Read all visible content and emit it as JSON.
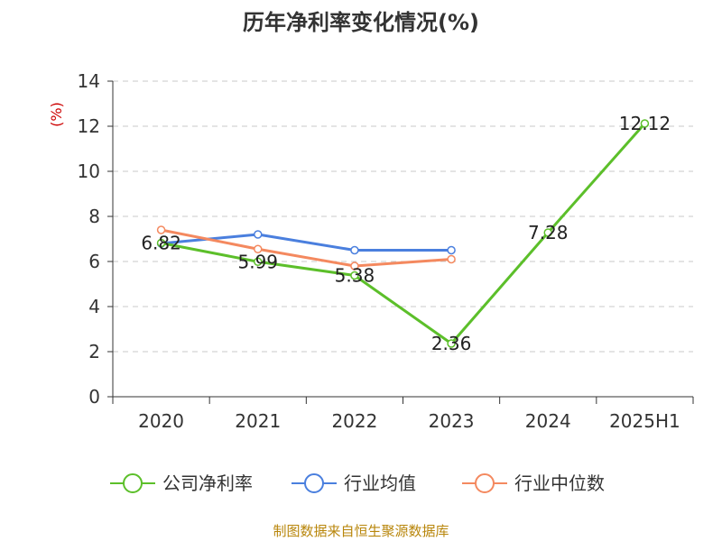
{
  "chart_data": {
    "type": "line",
    "title": "历年净利率变化情况(%)",
    "ylabel": "(%)",
    "xlabel": "",
    "categories": [
      "2020",
      "2021",
      "2022",
      "2023",
      "2024",
      "2025H1"
    ],
    "ylim": [
      0,
      14
    ],
    "yticks": [
      0,
      2,
      4,
      6,
      8,
      10,
      12,
      14
    ],
    "grid": true,
    "legend_position": "bottom",
    "series": [
      {
        "name": "公司净利率",
        "color": "#5cbf2a",
        "values": [
          6.82,
          5.99,
          5.38,
          2.36,
          7.28,
          12.12
        ],
        "labels": [
          "6.82",
          "5.99",
          "5.38",
          "2.36",
          "7.28",
          "12.12"
        ]
      },
      {
        "name": "行业均值",
        "color": "#4a7fde",
        "values": [
          6.8,
          7.2,
          6.5,
          6.5,
          null,
          null
        ]
      },
      {
        "name": "行业中位数",
        "color": "#f4895f",
        "values": [
          7.4,
          6.55,
          5.8,
          6.1,
          null,
          null
        ]
      }
    ],
    "source": "制图数据来自恒生聚源数据库"
  }
}
